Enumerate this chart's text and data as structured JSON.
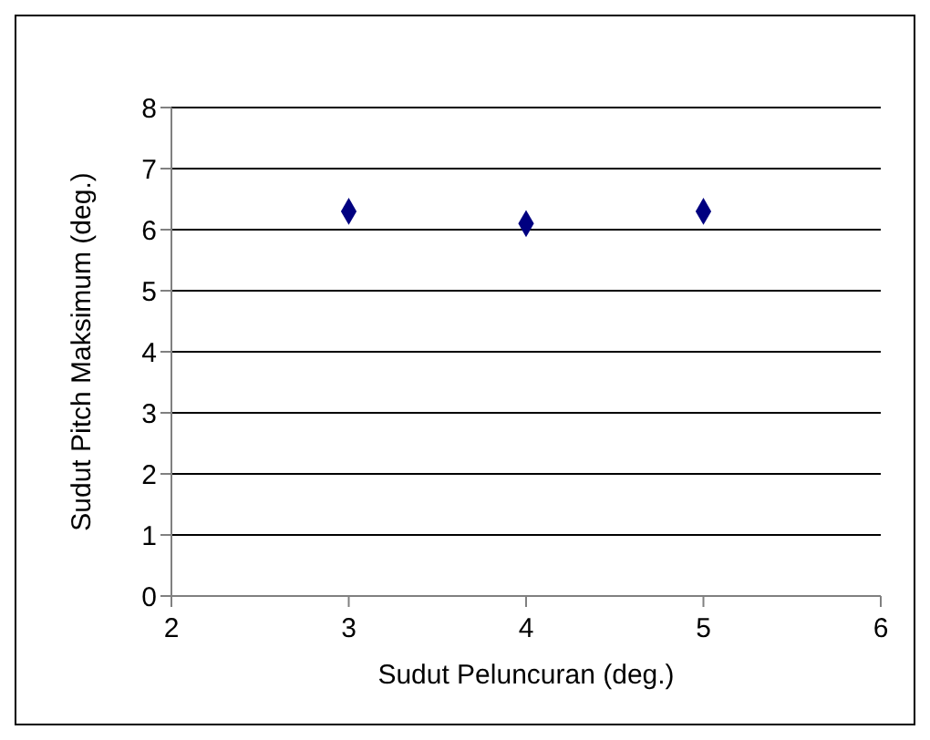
{
  "chart_data": {
    "type": "scatter",
    "xlabel": "Sudut Peluncuran (deg.)",
    "ylabel": "Sudut Pitch Maksimum (deg.)",
    "x": [
      3,
      4,
      5
    ],
    "series": [
      {
        "color": "#000080",
        "values": [
          6.3,
          6.1,
          6.3
        ]
      }
    ],
    "xlim": [
      2,
      6
    ],
    "xticks": [
      2,
      3,
      4,
      5,
      6
    ],
    "ylim": [
      0,
      8
    ],
    "yticks": [
      0,
      1,
      2,
      3,
      4,
      5,
      6,
      7,
      8
    ],
    "grid": "y",
    "marker": "diamond"
  }
}
